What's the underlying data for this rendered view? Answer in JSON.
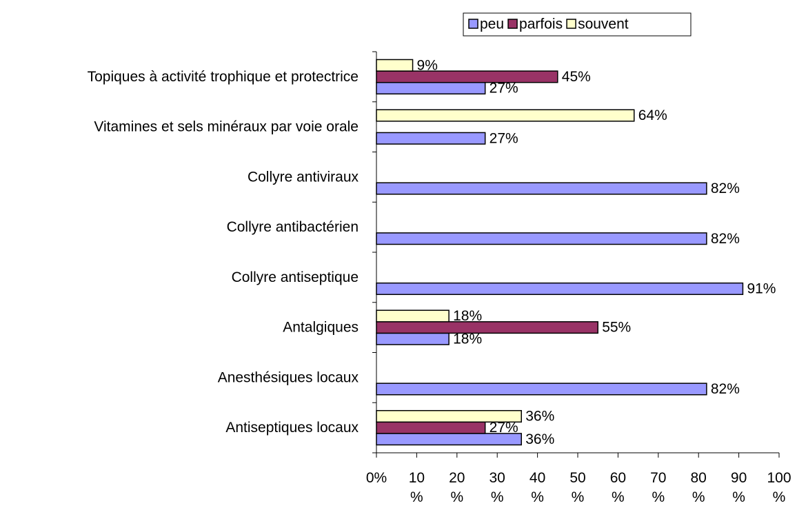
{
  "chart_data": {
    "type": "bar",
    "orientation": "horizontal",
    "categories": [
      "Topiques à activité trophique et protectrice",
      "Vitamines et sels minéraux par voie orale",
      "Collyre antiviraux",
      "Collyre antibactérien",
      "Collyre antiseptique",
      "Antalgiques",
      "Anesthésiques locaux",
      "Antiseptiques locaux"
    ],
    "series": [
      {
        "name": "peu",
        "color": "#9999ff",
        "values": [
          27,
          27,
          82,
          82,
          91,
          18,
          82,
          36
        ],
        "value_labels": [
          "27%",
          "27%",
          "82%",
          "82%",
          "91%",
          "18%",
          "82%",
          "36%"
        ]
      },
      {
        "name": "parfois",
        "color": "#993366",
        "values": [
          45,
          null,
          null,
          null,
          null,
          55,
          null,
          27
        ],
        "value_labels": [
          "45%",
          null,
          null,
          null,
          null,
          "55%",
          null,
          "27%"
        ]
      },
      {
        "name": "souvent",
        "color": "#ffffcc",
        "values": [
          9,
          64,
          null,
          null,
          null,
          18,
          null,
          36
        ],
        "value_labels": [
          "9%",
          "64%",
          null,
          null,
          null,
          "18%",
          null,
          "36%"
        ]
      }
    ],
    "xlim": [
      0,
      100
    ],
    "xticks": [
      {
        "value": 0,
        "label": "0%"
      },
      {
        "value": 10,
        "label": "10 %"
      },
      {
        "value": 20,
        "label": "20 %"
      },
      {
        "value": 30,
        "label": "30 %"
      },
      {
        "value": 40,
        "label": "40 %"
      },
      {
        "value": 50,
        "label": "50 %"
      },
      {
        "value": 60,
        "label": "60 %"
      },
      {
        "value": 70,
        "label": "70 %"
      },
      {
        "value": 80,
        "label": "80 %"
      },
      {
        "value": 90,
        "label": "90 %"
      },
      {
        "value": 100,
        "label": "100 %"
      }
    ],
    "legend": "top"
  }
}
